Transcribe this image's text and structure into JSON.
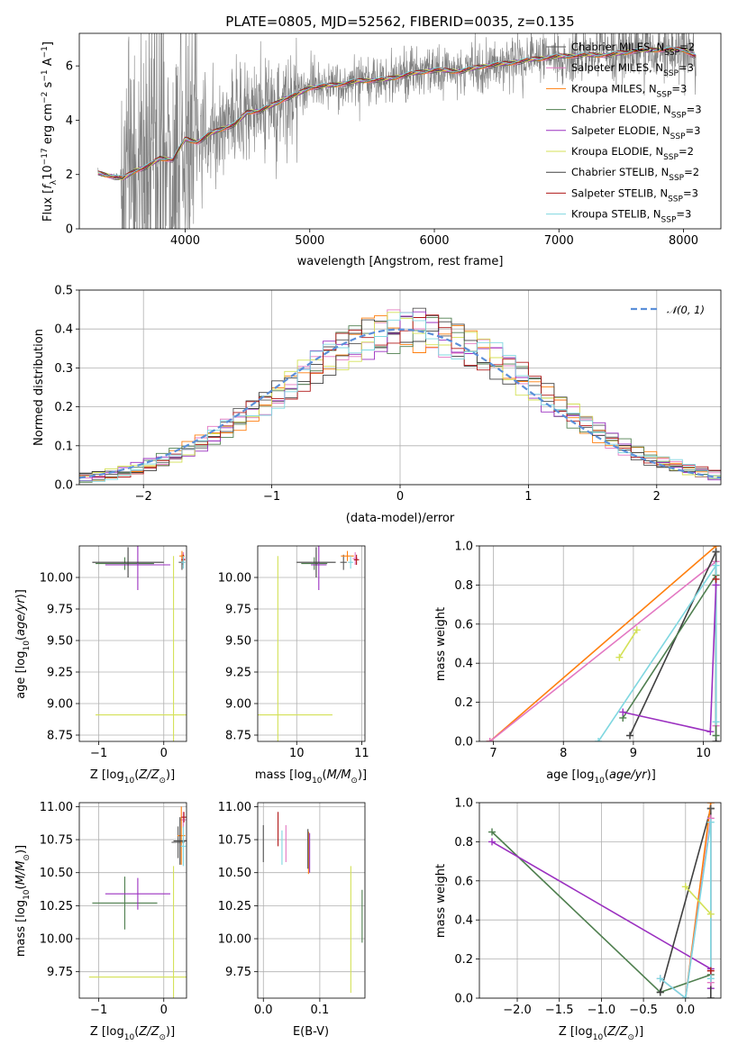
{
  "colors": {
    "Chabrier MILES": "#555555",
    "Salpeter MILES": "#e377c2",
    "Kroupa MILES": "#ff7f0e",
    "Chabrier ELODIE": "#4f7f4f",
    "Salpeter ELODIE": "#9b30c0",
    "Kroupa ELODIE": "#d4e157",
    "Chabrier STELIB": "#404040",
    "Salpeter STELIB": "#b01818",
    "Kroupa STELIB": "#7fd7e0",
    "normal": "#5b8fd9",
    "data": "#808080"
  },
  "chart_data": [
    {
      "id": "spectrum",
      "type": "line",
      "title": "PLATE=0805, MJD=52562, FIBERID=0035, z=0.135",
      "xlabel": "wavelength [Angstrom, rest frame]",
      "ylabel": "Flux [f_λ 10^-17 erg cm^-2 s^-1 A^-1]",
      "xlim": [
        3150,
        8300
      ],
      "ylim": [
        0,
        7.2
      ],
      "xticks": [
        4000,
        5000,
        6000,
        7000,
        8000
      ],
      "yticks": [
        0,
        2,
        4,
        6
      ],
      "grid": false,
      "legend_position": "right",
      "continuum": {
        "x": [
          3300,
          3400,
          3500,
          3600,
          3700,
          3800,
          3900,
          4000,
          4100,
          4200,
          4300,
          4400,
          4500,
          4600,
          4700,
          4800,
          4900,
          5000,
          5200,
          5400,
          5600,
          5800,
          6000,
          6200,
          6400,
          6600,
          6800,
          7000,
          7200,
          7400,
          7600,
          7800,
          8000,
          8100
        ],
        "y": [
          2.05,
          1.95,
          1.85,
          2.15,
          2.3,
          2.6,
          2.55,
          3.3,
          3.2,
          3.5,
          3.7,
          3.85,
          4.3,
          4.35,
          4.55,
          4.8,
          4.95,
          5.2,
          5.3,
          5.45,
          5.5,
          5.7,
          5.85,
          5.8,
          6.0,
          6.1,
          6.25,
          6.35,
          6.4,
          6.4,
          6.55,
          6.6,
          6.6,
          6.35
        ]
      },
      "series": [
        {
          "name": "Chabrier MILES",
          "nssp": "2"
        },
        {
          "name": "Salpeter MILES",
          "nssp": "3"
        },
        {
          "name": "Kroupa MILES",
          "nssp": "3"
        },
        {
          "name": "Chabrier ELODIE",
          "nssp": "3"
        },
        {
          "name": "Salpeter ELODIE",
          "nssp": "3"
        },
        {
          "name": "Kroupa ELODIE",
          "nssp": "2"
        },
        {
          "name": "Chabrier STELIB",
          "nssp": "2"
        },
        {
          "name": "Salpeter STELIB",
          "nssp": "3"
        },
        {
          "name": "Kroupa STELIB",
          "nssp": "3"
        }
      ],
      "legend_suffix": "N_SSP"
    },
    {
      "id": "residuals",
      "type": "histogram",
      "xlabel": "(data-model)/error",
      "ylabel": "Normed distribution",
      "xlim": [
        -2.5,
        2.5
      ],
      "ylim": [
        0,
        0.5
      ],
      "xticks": [
        -2,
        -1,
        0,
        1,
        2
      ],
      "yticks": [
        0.0,
        0.1,
        0.2,
        0.3,
        0.4,
        0.5
      ],
      "grid": true,
      "bin_width": 0.1,
      "reference_curve": "N(0,1)",
      "legend_position": "top-right",
      "legend_label": "𝒩(0, 1)"
    },
    {
      "id": "age_vs_Z",
      "type": "errorbar",
      "xlabel": "Z [log10(Z/Z⊙)]",
      "ylabel": "age  [log10(age/yr)]",
      "xlim": [
        -1.3,
        0.35
      ],
      "ylim": [
        8.7,
        10.25
      ],
      "xticks": [
        -1,
        0
      ],
      "yticks": [
        8.75,
        9.0,
        9.25,
        9.5,
        9.75,
        10.0
      ],
      "grid": true,
      "points": [
        {
          "series": "Chabrier MILES",
          "x": 0.28,
          "y": 10.12,
          "xerr": 0.05,
          "yerr": 0.06
        },
        {
          "series": "Salpeter MILES",
          "x": 0.3,
          "y": 10.15,
          "xerr": 0.03,
          "yerr": 0.05
        },
        {
          "series": "Kroupa MILES",
          "x": 0.28,
          "y": 10.17,
          "xerr": 0.04,
          "yerr": 0.04
        },
        {
          "series": "Chabrier ELODIE",
          "x": -0.6,
          "y": 10.11,
          "xerr": 0.45,
          "yerr": 0.05
        },
        {
          "series": "Salpeter ELODIE",
          "x": -0.4,
          "y": 10.1,
          "xerr": 0.5,
          "yerr": 0.2
        },
        {
          "series": "Kroupa ELODIE",
          "x": 0.15,
          "y": 8.91,
          "xerr": 1.2,
          "yerr": 1.26
        },
        {
          "series": "Chabrier STELIB",
          "x": -0.55,
          "y": 10.12,
          "xerr": 0.55,
          "yerr": 0.12
        },
        {
          "series": "Salpeter STELIB",
          "x": 0.3,
          "y": 10.14,
          "xerr": 0.03,
          "yerr": 0.04
        },
        {
          "series": "Kroupa STELIB",
          "x": 0.3,
          "y": 10.12,
          "xerr": 0.03,
          "yerr": 0.05
        }
      ]
    },
    {
      "id": "age_vs_mass",
      "type": "errorbar",
      "xlabel": "mass [log10(M/M⊙)]",
      "ylabel": "",
      "xlim": [
        9.4,
        11.05
      ],
      "ylim": [
        8.7,
        10.25
      ],
      "xticks": [
        10,
        11
      ],
      "yticks": [
        8.75,
        9.0,
        9.25,
        9.5,
        9.75,
        10.0
      ],
      "grid": true,
      "points": [
        {
          "series": "Chabrier MILES",
          "x": 10.72,
          "y": 10.12,
          "xerr": 0.05,
          "yerr": 0.06
        },
        {
          "series": "Salpeter MILES",
          "x": 10.9,
          "y": 10.15,
          "xerr": 0.04,
          "yerr": 0.05
        },
        {
          "series": "Kroupa MILES",
          "x": 10.78,
          "y": 10.17,
          "xerr": 0.1,
          "yerr": 0.04
        },
        {
          "series": "Chabrier ELODIE",
          "x": 10.27,
          "y": 10.11,
          "xerr": 0.2,
          "yerr": 0.05
        },
        {
          "series": "Salpeter ELODIE",
          "x": 10.34,
          "y": 10.1,
          "xerr": 0.12,
          "yerr": 0.2
        },
        {
          "series": "Kroupa ELODIE",
          "x": 9.71,
          "y": 8.91,
          "xerr": 0.84,
          "yerr": 1.26
        },
        {
          "series": "Chabrier STELIB",
          "x": 10.3,
          "y": 10.12,
          "xerr": 0.3,
          "yerr": 0.12
        },
        {
          "series": "Salpeter STELIB",
          "x": 10.92,
          "y": 10.14,
          "xerr": 0.04,
          "yerr": 0.04
        },
        {
          "series": "Kroupa STELIB",
          "x": 10.83,
          "y": 10.12,
          "xerr": 0.04,
          "yerr": 0.05
        }
      ]
    },
    {
      "id": "mass_weight_vs_age",
      "type": "line",
      "xlabel": "age  [log10(age/yr)]",
      "ylabel": "mass weight",
      "xlim": [
        6.8,
        10.25
      ],
      "ylim": [
        0,
        1.0
      ],
      "xticks": [
        7,
        8,
        9,
        10
      ],
      "yticks": [
        0.0,
        0.2,
        0.4,
        0.6,
        0.8,
        1.0
      ],
      "grid": true,
      "series": [
        {
          "name": "Kroupa MILES",
          "x": [
            6.95,
            10.18
          ],
          "y": [
            0.0,
            1.0
          ]
        },
        {
          "name": "Salpeter MILES",
          "x": [
            6.95,
            10.18,
            10.18
          ],
          "y": [
            0.0,
            0.92,
            0.08
          ]
        },
        {
          "name": "Chabrier STELIB",
          "x": [
            8.95,
            10.18,
            10.18
          ],
          "y": [
            0.03,
            0.97,
            0.0
          ]
        },
        {
          "name": "Chabrier ELODIE",
          "x": [
            8.85,
            10.18,
            10.18
          ],
          "y": [
            0.12,
            0.85,
            0.03
          ]
        },
        {
          "name": "Kroupa STELIB",
          "x": [
            8.5,
            10.18,
            10.18
          ],
          "y": [
            0.0,
            0.9,
            0.1
          ]
        },
        {
          "name": "Salpeter ELODIE",
          "x": [
            8.85,
            10.1,
            10.18
          ],
          "y": [
            0.15,
            0.05,
            0.8
          ]
        },
        {
          "name": "Kroupa ELODIE",
          "x": [
            8.8,
            9.05
          ],
          "y": [
            0.43,
            0.57
          ]
        },
        {
          "name": "Chabrier MILES",
          "x": [
            10.18
          ],
          "y": [
            0.97
          ]
        },
        {
          "name": "Salpeter STELIB",
          "x": [
            10.18
          ],
          "y": [
            0.83
          ]
        }
      ]
    },
    {
      "id": "mass_vs_Z",
      "type": "errorbar",
      "xlabel": "Z [log10(Z/Z⊙)]",
      "ylabel": "mass [log10(M/M⊙)]",
      "xlim": [
        -1.3,
        0.35
      ],
      "ylim": [
        9.55,
        11.03
      ],
      "xticks": [
        -1,
        0
      ],
      "yticks": [
        9.75,
        10.0,
        10.25,
        10.5,
        10.75,
        11.0
      ],
      "grid": true,
      "points": [
        {
          "series": "Chabrier MILES",
          "x": 0.22,
          "y": 10.73,
          "xerr": 0.1,
          "yerr": 0.12
        },
        {
          "series": "Salpeter MILES",
          "x": 0.3,
          "y": 10.9,
          "xerr": 0.05,
          "yerr": 0.06
        },
        {
          "series": "Kroupa MILES",
          "x": 0.27,
          "y": 10.78,
          "xerr": 0.06,
          "yerr": 0.22
        },
        {
          "series": "Chabrier ELODIE",
          "x": -0.6,
          "y": 10.27,
          "xerr": 0.5,
          "yerr": 0.2
        },
        {
          "series": "Salpeter ELODIE",
          "x": -0.4,
          "y": 10.34,
          "xerr": 0.5,
          "yerr": 0.12
        },
        {
          "series": "Kroupa ELODIE",
          "x": 0.15,
          "y": 9.71,
          "xerr": 1.3,
          "yerr": 0.84
        },
        {
          "series": "Chabrier STELIB",
          "x": 0.25,
          "y": 10.74,
          "xerr": 0.1,
          "yerr": 0.18
        },
        {
          "series": "Salpeter STELIB",
          "x": 0.31,
          "y": 10.92,
          "xerr": 0.04,
          "yerr": 0.04
        },
        {
          "series": "Kroupa STELIB",
          "x": 0.3,
          "y": 10.7,
          "xerr": 0.04,
          "yerr": 0.15
        }
      ]
    },
    {
      "id": "mass_vs_ebv",
      "type": "errorbar",
      "xlabel": "E(B-V)",
      "ylabel": "",
      "xlim": [
        -0.01,
        0.18
      ],
      "ylim": [
        9.55,
        11.03
      ],
      "xticks": [
        0.0,
        0.1
      ],
      "yticks": [
        9.75,
        10.0,
        10.25,
        10.5,
        10.75,
        11.0
      ],
      "grid": true,
      "points": [
        {
          "series": "Chabrier MILES",
          "x": 0.0,
          "y": 10.72,
          "xerr": 0.0,
          "yerr": 0.14
        },
        {
          "series": "Salpeter MILES",
          "x": 0.04,
          "y": 10.72,
          "xerr": 0.0,
          "yerr": 0.14
        },
        {
          "series": "Kroupa MILES",
          "x": 0.08,
          "y": 10.65,
          "xerr": 0.0,
          "yerr": 0.16
        },
        {
          "series": "Chabrier ELODIE",
          "x": 0.175,
          "y": 10.17,
          "xerr": 0.0,
          "yerr": 0.2
        },
        {
          "series": "Salpeter ELODIE",
          "x": 0.082,
          "y": 10.65,
          "xerr": 0.0,
          "yerr": 0.15
        },
        {
          "series": "Kroupa ELODIE",
          "x": 0.155,
          "y": 10.07,
          "xerr": 0.0,
          "yerr": 0.48
        },
        {
          "series": "Chabrier STELIB",
          "x": 0.079,
          "y": 10.68,
          "xerr": 0.0,
          "yerr": 0.15
        },
        {
          "series": "Salpeter STELIB",
          "x": 0.026,
          "y": 10.83,
          "xerr": 0.0,
          "yerr": 0.13
        },
        {
          "series": "Kroupa STELIB",
          "x": 0.033,
          "y": 10.69,
          "xerr": 0.0,
          "yerr": 0.13
        }
      ]
    },
    {
      "id": "mass_weight_vs_Z",
      "type": "line",
      "xlabel": "Z [log10(Z/Z⊙)]",
      "ylabel": "mass weight",
      "xlim": [
        -2.45,
        0.42
      ],
      "ylim": [
        0,
        1.0
      ],
      "xticks": [
        -2.0,
        -1.5,
        -1.0,
        -0.5,
        0.0
      ],
      "yticks": [
        0.0,
        0.2,
        0.4,
        0.6,
        0.8,
        1.0
      ],
      "grid": true,
      "series": [
        {
          "name": "Chabrier ELODIE",
          "x": [
            -2.3,
            -0.3,
            0.3
          ],
          "y": [
            0.85,
            0.03,
            0.12
          ]
        },
        {
          "name": "Salpeter ELODIE",
          "x": [
            -2.3,
            0.3,
            0.3
          ],
          "y": [
            0.8,
            0.15,
            0.05
          ]
        },
        {
          "name": "Chabrier STELIB",
          "x": [
            -0.3,
            0.3,
            0.3
          ],
          "y": [
            0.03,
            0.97,
            0.0
          ]
        },
        {
          "name": "Kroupa MILES",
          "x": [
            0.0,
            0.3
          ],
          "y": [
            0.0,
            1.0
          ]
        },
        {
          "name": "Salpeter MILES",
          "x": [
            -0.3,
            0.0,
            0.3,
            0.3
          ],
          "y": [
            0.1,
            0.0,
            0.92,
            0.08
          ]
        },
        {
          "name": "Kroupa STELIB",
          "x": [
            -0.3,
            0.0,
            0.3,
            0.3
          ],
          "y": [
            0.1,
            0.0,
            0.9,
            0.1
          ]
        },
        {
          "name": "Kroupa ELODIE",
          "x": [
            0.0,
            0.3
          ],
          "y": [
            0.57,
            0.43
          ]
        },
        {
          "name": "Chabrier MILES",
          "x": [
            0.3
          ],
          "y": [
            0.97
          ]
        },
        {
          "name": "Salpeter STELIB",
          "x": [
            0.3
          ],
          "y": [
            0.14
          ]
        }
      ]
    }
  ]
}
